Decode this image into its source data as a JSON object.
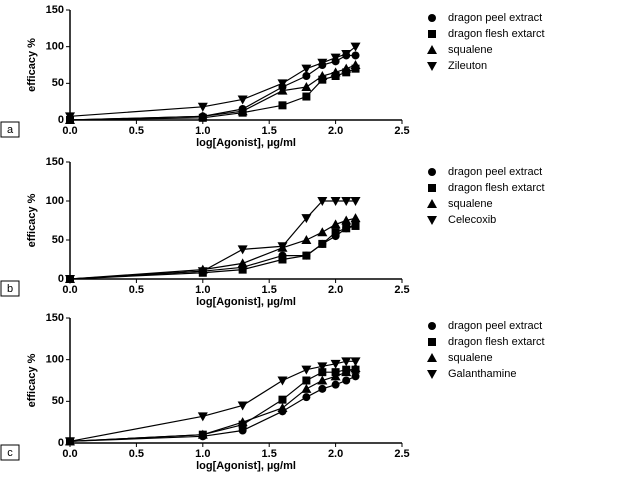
{
  "chart_data": [
    {
      "type": "line",
      "panel_label": "a",
      "y_label": "efficacy %",
      "x_label": "log[Agonist], µg/ml",
      "x": [
        0,
        1,
        1.3,
        1.6,
        1.78,
        1.9,
        2,
        2.08,
        2.15
      ],
      "xlim": [
        0,
        2.5
      ],
      "ylim": [
        0,
        150
      ],
      "xticks": [
        {
          "value": 0,
          "label": "0.0"
        },
        0.5,
        {
          "value": 1,
          "label": "1.0"
        },
        1.5,
        {
          "value": 2,
          "label": "2.0"
        },
        2.5
      ],
      "yticks": [
        0,
        50,
        100,
        150
      ],
      "series": [
        {
          "name": "dragon peel extract",
          "color": "#000000",
          "marker": "circle",
          "values": [
            0,
            5,
            15,
            45,
            60,
            75,
            80,
            88,
            88
          ]
        },
        {
          "name": "dragon flesh extarct",
          "color": "#000000",
          "marker": "square",
          "values": [
            0,
            3,
            10,
            20,
            32,
            55,
            60,
            65,
            70
          ]
        },
        {
          "name": "squalene",
          "color": "#000000",
          "marker": "triangle-up",
          "values": [
            0,
            5,
            12,
            40,
            45,
            60,
            65,
            70,
            75
          ]
        },
        {
          "name": "Zileuton",
          "color": "#000000",
          "marker": "triangle-down",
          "values": [
            5,
            18,
            28,
            50,
            70,
            78,
            85,
            90,
            100
          ]
        }
      ]
    },
    {
      "type": "line",
      "panel_label": "b",
      "y_label": "efficacy %",
      "x_label": "log[Agonist], µg/ml",
      "x": [
        0,
        1,
        1.3,
        1.6,
        1.78,
        1.9,
        2,
        2.08,
        2.15
      ],
      "xlim": [
        0,
        2.5
      ],
      "ylim": [
        0,
        150
      ],
      "xticks": [
        {
          "value": 0,
          "label": "0.0"
        },
        0.5,
        {
          "value": 1,
          "label": "1.0"
        },
        1.5,
        {
          "value": 2,
          "label": "2.0"
        },
        2.5
      ],
      "yticks": [
        0,
        50,
        100,
        150
      ],
      "series": [
        {
          "name": "dragon peel extract",
          "color": "#000000",
          "marker": "circle",
          "values": [
            0,
            10,
            15,
            30,
            30,
            45,
            55,
            65,
            70
          ]
        },
        {
          "name": "dragon flesh extarct",
          "color": "#000000",
          "marker": "square",
          "values": [
            0,
            8,
            12,
            25,
            30,
            45,
            60,
            65,
            68
          ]
        },
        {
          "name": "squalene",
          "color": "#000000",
          "marker": "triangle-up",
          "values": [
            0,
            12,
            20,
            40,
            50,
            60,
            70,
            75,
            78
          ]
        },
        {
          "name": "Celecoxib",
          "color": "#000000",
          "marker": "triangle-down",
          "values": [
            0,
            10,
            38,
            42,
            78,
            100,
            100,
            100,
            100
          ]
        }
      ]
    },
    {
      "type": "line",
      "panel_label": "c",
      "y_label": "efficacy %",
      "x_label": "log[Agonist], µg/ml",
      "x": [
        0,
        1,
        1.3,
        1.6,
        1.78,
        1.9,
        2,
        2.08,
        2.15
      ],
      "xlim": [
        0,
        2.5
      ],
      "ylim": [
        0,
        150
      ],
      "xticks": [
        {
          "value": 0,
          "label": "0.0"
        },
        0.5,
        {
          "value": 1,
          "label": "1.0"
        },
        1.5,
        {
          "value": 2,
          "label": "2.0"
        },
        2.5
      ],
      "yticks": [
        0,
        50,
        100,
        150
      ],
      "series": [
        {
          "name": "dragon peel extract",
          "color": "#000000",
          "marker": "circle",
          "values": [
            2,
            8,
            15,
            38,
            55,
            65,
            70,
            75,
            80
          ]
        },
        {
          "name": "dragon flesh extarct",
          "color": "#000000",
          "marker": "square",
          "values": [
            2,
            10,
            22,
            52,
            75,
            85,
            85,
            88,
            88
          ]
        },
        {
          "name": "squalene",
          "color": "#000000",
          "marker": "triangle-up",
          "values": [
            2,
            10,
            25,
            42,
            65,
            75,
            80,
            85,
            90
          ]
        },
        {
          "name": "Galanthamine",
          "color": "#000000",
          "marker": "triangle-down",
          "values": [
            2,
            32,
            45,
            75,
            88,
            92,
            95,
            98,
            98
          ]
        }
      ]
    }
  ]
}
